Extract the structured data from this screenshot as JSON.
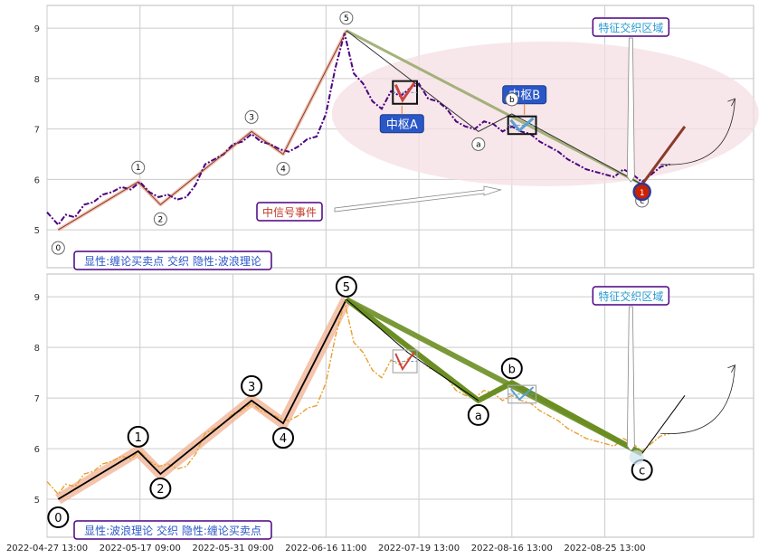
{
  "chart_data": [
    {
      "type": "line",
      "panel": "top",
      "ylim": [
        4.25,
        9.45
      ],
      "y_ticks": [
        5,
        6,
        7,
        8,
        9
      ],
      "grid": true,
      "price_series": {
        "name": "price",
        "color": "#4b0082",
        "style": "dash-dot",
        "points": [
          [
            0,
            5.35
          ],
          [
            0.6,
            5.1
          ],
          [
            1,
            5.3
          ],
          [
            1.5,
            5.25
          ],
          [
            2,
            5.5
          ],
          [
            2.5,
            5.55
          ],
          [
            3,
            5.7
          ],
          [
            3.5,
            5.75
          ],
          [
            4,
            5.85
          ],
          [
            4.5,
            5.8
          ],
          [
            5,
            5.95
          ],
          [
            5.5,
            5.75
          ],
          [
            6,
            5.65
          ],
          [
            6.5,
            5.7
          ],
          [
            7,
            5.6
          ],
          [
            7.5,
            5.65
          ],
          [
            8,
            5.9
          ],
          [
            8.5,
            6.3
          ],
          [
            9,
            6.4
          ],
          [
            9.5,
            6.5
          ],
          [
            10,
            6.7
          ],
          [
            10.5,
            6.75
          ],
          [
            11,
            6.9
          ],
          [
            11.5,
            6.75
          ],
          [
            12,
            6.7
          ],
          [
            12.5,
            6.6
          ],
          [
            13,
            6.55
          ],
          [
            13.5,
            6.65
          ],
          [
            14,
            6.8
          ],
          [
            14.5,
            6.85
          ],
          [
            15,
            7.3
          ],
          [
            15.5,
            8.2
          ],
          [
            16,
            8.9
          ],
          [
            16.5,
            8.1
          ],
          [
            17,
            7.9
          ],
          [
            17.5,
            7.55
          ],
          [
            18,
            7.4
          ],
          [
            18.5,
            7.75
          ],
          [
            19,
            7.65
          ],
          [
            19.5,
            7.8
          ],
          [
            20,
            7.9
          ],
          [
            20.5,
            7.6
          ],
          [
            21,
            7.55
          ],
          [
            21.5,
            7.4
          ],
          [
            22,
            7.15
          ],
          [
            22.5,
            7.05
          ],
          [
            23,
            7.0
          ],
          [
            23.5,
            7.15
          ],
          [
            24,
            7.1
          ],
          [
            24.5,
            6.95
          ],
          [
            25,
            7.05
          ],
          [
            25.5,
            6.95
          ],
          [
            26,
            6.9
          ],
          [
            26.5,
            6.75
          ],
          [
            27,
            6.65
          ],
          [
            27.5,
            6.55
          ],
          [
            28,
            6.4
          ],
          [
            28.5,
            6.3
          ],
          [
            29,
            6.2
          ],
          [
            29.5,
            6.15
          ],
          [
            30,
            6.1
          ],
          [
            30.5,
            6.05
          ],
          [
            31,
            6.2
          ],
          [
            31.5,
            6.1
          ],
          [
            32,
            5.95
          ],
          [
            32.5,
            6.1
          ],
          [
            33,
            6.25
          ],
          [
            33.5,
            6.3
          ]
        ]
      },
      "wave_labels": [
        "0",
        "1",
        "2",
        "3",
        "4",
        "5",
        "a",
        "b",
        "c"
      ],
      "wave_points": [
        [
          0.6,
          5.0
        ],
        [
          4.9,
          5.95
        ],
        [
          6.1,
          5.5
        ],
        [
          11.0,
          6.95
        ],
        [
          12.7,
          6.5
        ],
        [
          16.1,
          8.95
        ],
        [
          23.2,
          6.95
        ],
        [
          25.0,
          7.3
        ],
        [
          32.0,
          5.9
        ]
      ],
      "extension_line": [
        [
          32.0,
          5.9
        ],
        [
          34.3,
          7.05
        ]
      ],
      "zs_boxes": [
        {
          "label": "中枢A",
          "x0": 18.6,
          "x1": 19.9,
          "y0": 7.5,
          "y1": 7.95,
          "color": "#2a57c7"
        },
        {
          "label": "中枢B",
          "x0": 24.8,
          "x1": 26.3,
          "y0": 6.9,
          "y1": 7.25,
          "color": "#2a57c7"
        }
      ],
      "annotations": {
        "special_zone": "特征交织区域",
        "signal_event": "中信号事件",
        "bottom_label": "显性:缠论买卖点 交织 隐性:波浪理论",
        "signal_marker": "1"
      }
    },
    {
      "type": "line",
      "panel": "bottom",
      "ylim": [
        4.25,
        9.45
      ],
      "y_ticks": [
        5,
        6,
        7,
        8,
        9
      ],
      "grid": true,
      "price_series": {
        "name": "price",
        "color": "#e8a030",
        "style": "dash-dot",
        "points": [
          [
            0,
            5.35
          ],
          [
            0.6,
            5.1
          ],
          [
            1,
            5.3
          ],
          [
            1.5,
            5.25
          ],
          [
            2,
            5.5
          ],
          [
            2.5,
            5.55
          ],
          [
            3,
            5.7
          ],
          [
            3.5,
            5.75
          ],
          [
            4,
            5.85
          ],
          [
            4.5,
            5.8
          ],
          [
            5,
            5.95
          ],
          [
            5.5,
            5.75
          ],
          [
            6,
            5.65
          ],
          [
            6.5,
            5.7
          ],
          [
            7,
            5.6
          ],
          [
            7.5,
            5.65
          ],
          [
            8,
            5.9
          ],
          [
            8.5,
            6.3
          ],
          [
            9,
            6.4
          ],
          [
            9.5,
            6.5
          ],
          [
            10,
            6.7
          ],
          [
            10.5,
            6.75
          ],
          [
            11,
            6.9
          ],
          [
            11.5,
            6.75
          ],
          [
            12,
            6.7
          ],
          [
            12.5,
            6.6
          ],
          [
            13,
            6.55
          ],
          [
            13.5,
            6.65
          ],
          [
            14,
            6.8
          ],
          [
            14.5,
            6.85
          ],
          [
            15,
            7.3
          ],
          [
            15.5,
            8.2
          ],
          [
            16,
            8.9
          ],
          [
            16.5,
            8.1
          ],
          [
            17,
            7.9
          ],
          [
            17.5,
            7.55
          ],
          [
            18,
            7.4
          ],
          [
            18.5,
            7.75
          ],
          [
            19,
            7.65
          ],
          [
            19.5,
            7.8
          ],
          [
            20,
            7.9
          ],
          [
            20.5,
            7.6
          ],
          [
            21,
            7.55
          ],
          [
            21.5,
            7.4
          ],
          [
            22,
            7.15
          ],
          [
            22.5,
            7.05
          ],
          [
            23,
            7.0
          ],
          [
            23.5,
            7.15
          ],
          [
            24,
            7.1
          ],
          [
            24.5,
            6.95
          ],
          [
            25,
            7.05
          ],
          [
            25.5,
            6.95
          ],
          [
            26,
            6.9
          ],
          [
            26.5,
            6.75
          ],
          [
            27,
            6.65
          ],
          [
            27.5,
            6.55
          ],
          [
            28,
            6.4
          ],
          [
            28.5,
            6.3
          ],
          [
            29,
            6.2
          ],
          [
            29.5,
            6.15
          ],
          [
            30,
            6.1
          ],
          [
            30.5,
            6.05
          ],
          [
            31,
            6.2
          ],
          [
            31.5,
            6.1
          ],
          [
            32,
            5.95
          ],
          [
            32.5,
            6.1
          ],
          [
            33,
            6.25
          ],
          [
            33.5,
            6.3
          ]
        ]
      },
      "wave_labels": [
        "0",
        "1",
        "2",
        "3",
        "4",
        "5",
        "a",
        "b",
        "c"
      ],
      "wave_points": [
        [
          0.6,
          5.0
        ],
        [
          4.9,
          5.95
        ],
        [
          6.1,
          5.5
        ],
        [
          11.0,
          6.95
        ],
        [
          12.7,
          6.5
        ],
        [
          16.1,
          8.95
        ],
        [
          23.2,
          6.95
        ],
        [
          25.0,
          7.3
        ],
        [
          32.0,
          5.9
        ]
      ],
      "extension_line": [
        [
          32.0,
          5.9
        ],
        [
          34.3,
          7.05
        ]
      ],
      "zs_boxes": [
        {
          "x0": 18.6,
          "x1": 19.9,
          "y0": 7.5,
          "y1": 7.95,
          "color": "#999999"
        },
        {
          "x0": 24.8,
          "x1": 26.3,
          "y0": 6.9,
          "y1": 7.25,
          "color": "#999999"
        }
      ],
      "annotations": {
        "special_zone": "特征交织区域",
        "bottom_label": "显性:波浪理论 交织 隐性:缠论买卖点"
      }
    }
  ],
  "x_axis": {
    "xlim": [
      0,
      38
    ],
    "ticks": [
      {
        "x": 0,
        "label": "2022-04-27 13:00"
      },
      {
        "x": 5,
        "label": "2022-05-17 09:00"
      },
      {
        "x": 10,
        "label": "2022-05-31 09:00"
      },
      {
        "x": 15,
        "label": "2022-06-16 11:00"
      },
      {
        "x": 20,
        "label": "2022-07-19 13:00"
      },
      {
        "x": 25,
        "label": "2022-08-16 13:00"
      },
      {
        "x": 30,
        "label": "2022-08-25 13:00"
      }
    ]
  },
  "colors": {
    "grid": "#cccccc",
    "label_border": "#4b0082",
    "label_text": "#2a57c7",
    "zone_fill": "#f4dfe3",
    "wave_fill_top": "#e8a58a",
    "wave_fill_bottom": "#f0b090",
    "abc_line": "#6b8e23",
    "signal_red": "#cc2200"
  }
}
